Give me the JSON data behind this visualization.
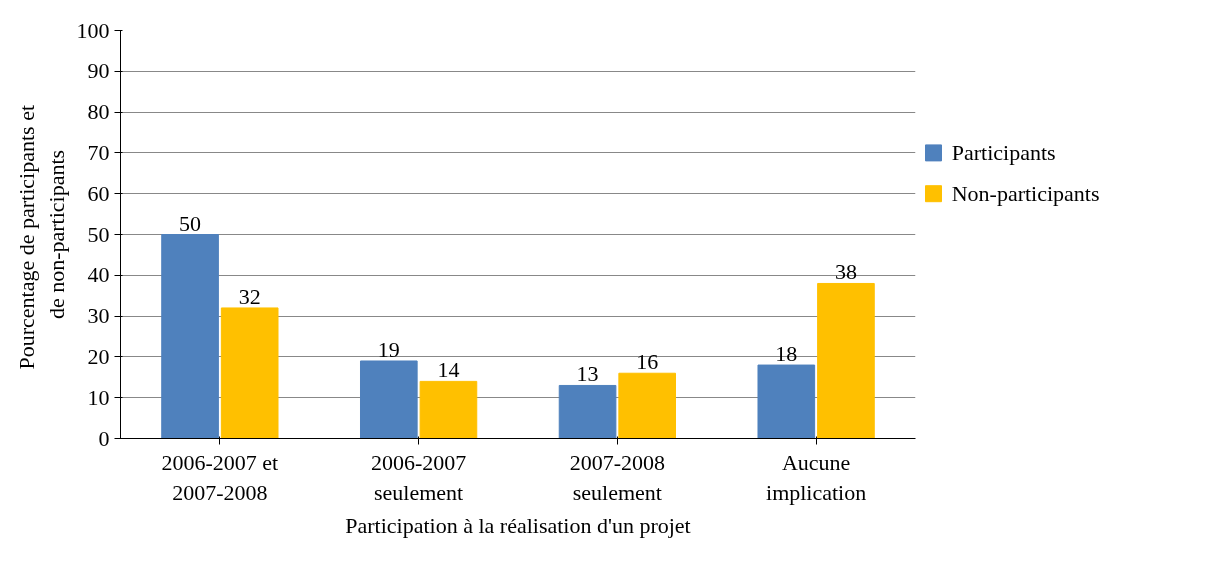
{
  "chart_data": {
    "type": "bar",
    "xlabel": "Participation à la réalisation d'un projet",
    "ylabel": "Pourcentage  de participants et de non-participants",
    "categories": [
      "2006-2007 et 2007-2008",
      "2006-2007 seulement",
      "2007-2008 seulement",
      "Aucune implication"
    ],
    "series": [
      {
        "name": "Participants",
        "color": "#4f81bd",
        "values": [
          50,
          19,
          13,
          18
        ]
      },
      {
        "name": "Non-participants",
        "color": "#ffc000",
        "values": [
          32,
          14,
          16,
          38
        ]
      }
    ],
    "ylim": [
      0,
      100
    ],
    "yticks": [
      0,
      10,
      20,
      30,
      40,
      50,
      60,
      70,
      80,
      90,
      100
    ],
    "grid": "y",
    "legend": "right",
    "data_labels": true
  }
}
